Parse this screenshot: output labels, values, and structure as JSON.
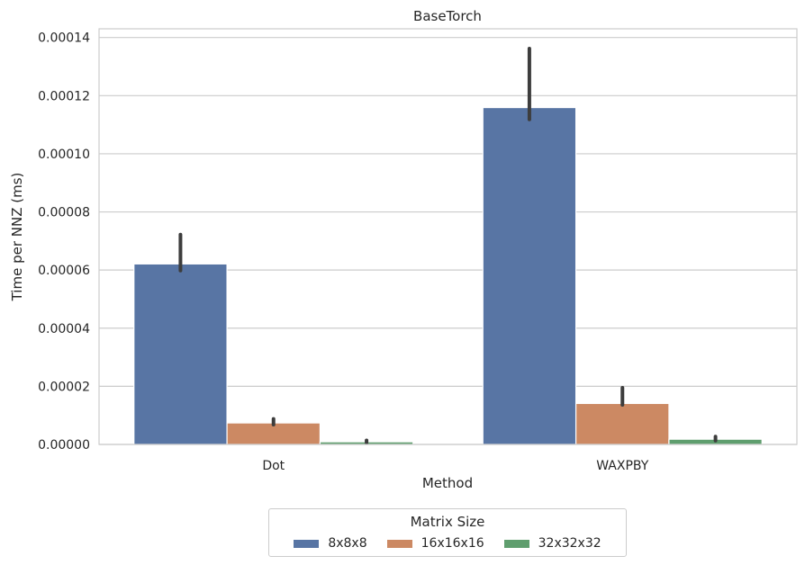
{
  "chart_data": {
    "type": "bar",
    "title": "BaseTorch",
    "xlabel": "Method",
    "ylabel": "Time per NNZ (ms)",
    "categories": [
      "Dot",
      "WAXPBY"
    ],
    "ylim": [
      0,
      0.000143
    ],
    "yticks": [
      "0.00000",
      "0.00002",
      "0.00004",
      "0.00006",
      "0.00008",
      "0.00010",
      "0.00012",
      "0.00014"
    ],
    "ytick_values": [
      0,
      2e-05,
      4e-05,
      6e-05,
      8e-05,
      0.0001,
      0.00012,
      0.00014
    ],
    "grid": true,
    "legend": {
      "title": "Matrix Size",
      "placement": "below"
    },
    "series": [
      {
        "name": "8x8x8",
        "color": "#5875a4",
        "values": [
          6.21e-05,
          0.0001159
        ],
        "err_low": [
          5.98e-05,
          0.0001118
        ],
        "err_high": [
          7.22e-05,
          0.0001362
        ]
      },
      {
        "name": "16x16x16",
        "color": "#cc8963",
        "values": [
          7.4e-06,
          1.41e-05
        ],
        "err_low": [
          6.8e-06,
          1.36e-05
        ],
        "err_high": [
          8.8e-06,
          1.95e-05
        ]
      },
      {
        "name": "32x32x32",
        "color": "#5f9e6e",
        "values": [
          9e-07,
          1.8e-06
        ],
        "err_low": [
          6e-07,
          1.3e-06
        ],
        "err_high": [
          1.4e-06,
          2.7e-06
        ]
      }
    ]
  }
}
